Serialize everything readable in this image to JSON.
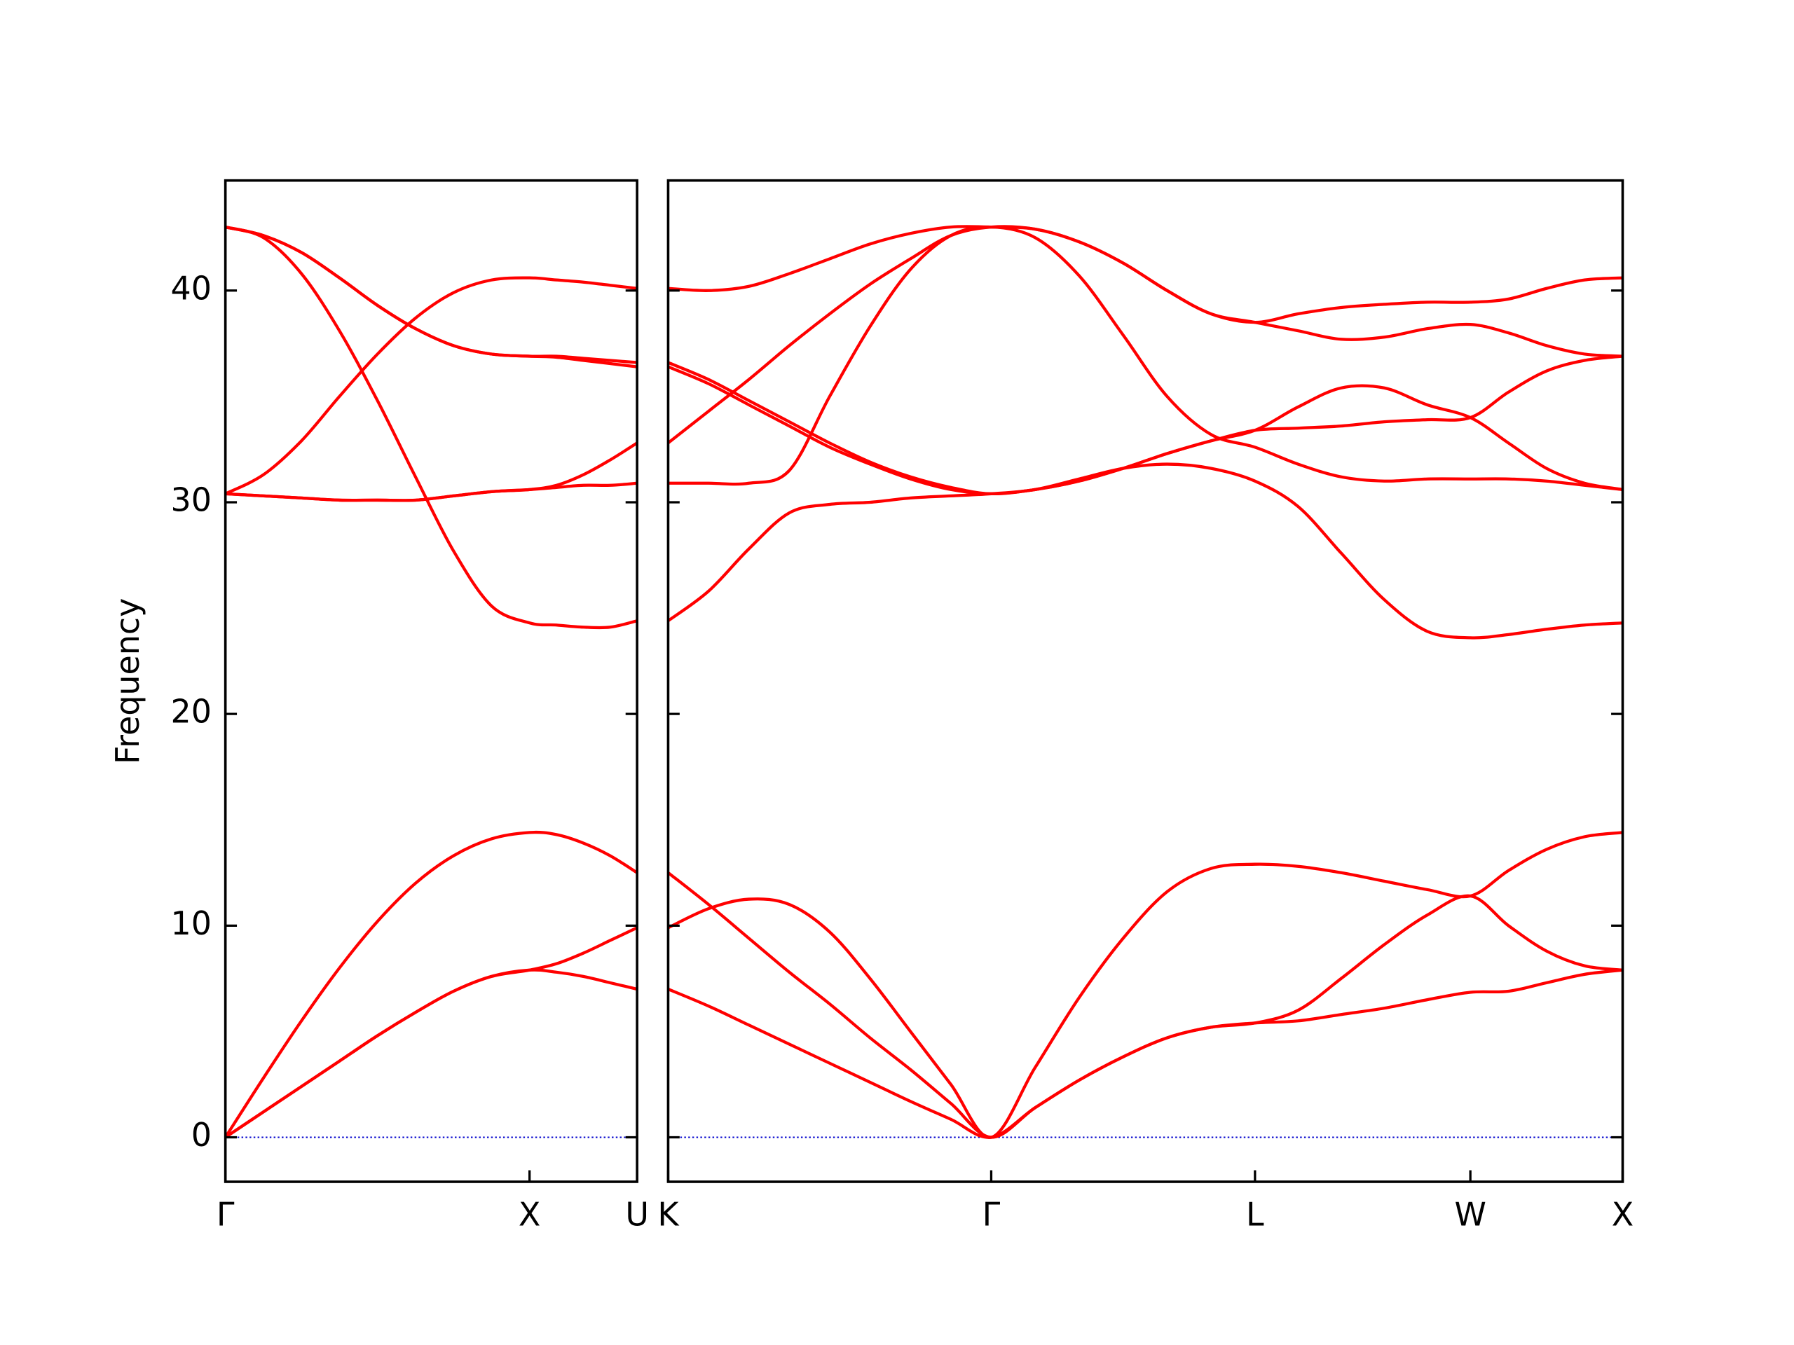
{
  "chart_data": [
    {
      "type": "line",
      "ylabel": "Frequency",
      "line_color": "#ff0000",
      "xlim": [
        0,
        1.3536
      ],
      "ylim": [
        -2.1,
        45.2
      ],
      "xticks": [
        {
          "value": 0,
          "label": "Γ"
        },
        {
          "value": 1,
          "label": "X"
        },
        {
          "value": 1.3536,
          "label": "U"
        }
      ],
      "yticks": [
        0,
        10,
        20,
        30,
        40
      ],
      "ytick_labels": true,
      "hlines": [
        {
          "value": 0,
          "color": "#0000cc",
          "style": "dotted"
        }
      ],
      "x": [
        0,
        0.125,
        0.25,
        0.375,
        0.5,
        0.625,
        0.75,
        0.875,
        1,
        1.0884,
        1.1768,
        1.2652,
        1.3536
      ],
      "series": [
        {
          "values": [
            0,
            1.2,
            2.4,
            3.6,
            4.8,
            5.9,
            6.9,
            7.6,
            7.9,
            7.8,
            7.6,
            7.3,
            7.0
          ]
        },
        {
          "values": [
            0,
            1.2,
            2.4,
            3.6,
            4.8,
            5.9,
            6.9,
            7.6,
            7.9,
            8.2,
            8.7,
            9.3,
            9.9
          ]
        },
        {
          "values": [
            0,
            2.8,
            5.5,
            8.0,
            10.2,
            12.0,
            13.3,
            14.1,
            14.4,
            14.3,
            13.9,
            13.3,
            12.5
          ]
        },
        {
          "values": [
            43.0,
            42.5,
            40.8,
            38.1,
            34.8,
            31.2,
            27.7,
            25.1,
            24.3,
            24.2,
            24.1,
            24.1,
            24.4
          ]
        },
        {
          "values": [
            30.4,
            30.3,
            30.2,
            30.1,
            30.1,
            30.1,
            30.3,
            30.5,
            30.6,
            30.7,
            30.8,
            30.8,
            30.9
          ]
        },
        {
          "values": [
            30.4,
            30.3,
            30.2,
            30.1,
            30.1,
            30.1,
            30.3,
            30.5,
            30.6,
            30.8,
            31.3,
            32.0,
            32.8
          ]
        },
        {
          "values": [
            43.0,
            42.6,
            41.8,
            40.6,
            39.3,
            38.2,
            37.4,
            37.0,
            36.9,
            36.9,
            36.8,
            36.7,
            36.6
          ]
        },
        {
          "values": [
            43.0,
            42.6,
            41.8,
            40.6,
            39.3,
            38.2,
            37.4,
            37.0,
            36.9,
            36.85,
            36.7,
            36.55,
            36.4
          ]
        },
        {
          "values": [
            30.4,
            31.3,
            32.9,
            35.0,
            37.0,
            38.7,
            39.9,
            40.5,
            40.6,
            40.5,
            40.4,
            40.25,
            40.1
          ]
        }
      ]
    },
    {
      "type": "line",
      "line_color": "#ff0000",
      "xlim": [
        1.3536,
        4.4874
      ],
      "ylim": [
        -2.1,
        45.2
      ],
      "xticks": [
        {
          "value": 1.3536,
          "label": "K"
        },
        {
          "value": 2.4143,
          "label": "Γ"
        },
        {
          "value": 3.2803,
          "label": "L"
        },
        {
          "value": 3.9874,
          "label": "W"
        },
        {
          "value": 4.4874,
          "label": "X"
        }
      ],
      "yticks": [
        0,
        10,
        20,
        30,
        40
      ],
      "ytick_labels": false,
      "hlines": [
        {
          "value": 0,
          "color": "#0000cc",
          "style": "dotted"
        }
      ],
      "x": [
        1.3536,
        1.4862,
        1.6188,
        1.7514,
        1.8839,
        2.0165,
        2.1491,
        2.2817,
        2.4143,
        2.5586,
        2.703,
        2.8473,
        2.9917,
        3.136,
        3.2803,
        3.4217,
        3.5631,
        3.7046,
        3.846,
        3.9874,
        4.1124,
        4.2374,
        4.3624,
        4.4874
      ],
      "series": [
        {
          "values": [
            7.0,
            6.2,
            5.3,
            4.4,
            3.5,
            2.6,
            1.7,
            0.85,
            0,
            1.4,
            2.7,
            3.8,
            4.7,
            5.2,
            5.4,
            5.5,
            5.8,
            6.1,
            6.5,
            6.85,
            6.9,
            7.3,
            7.7,
            7.9
          ]
        },
        {
          "values": [
            12.5,
            11.0,
            9.4,
            7.8,
            6.3,
            4.7,
            3.2,
            1.6,
            0,
            1.4,
            2.7,
            3.8,
            4.7,
            5.2,
            5.4,
            6.0,
            7.5,
            9.1,
            10.5,
            11.4,
            10.0,
            8.8,
            8.1,
            7.9
          ]
        },
        {
          "values": [
            9.9,
            10.8,
            11.25,
            11.0,
            9.7,
            7.5,
            5.0,
            2.5,
            0,
            3.3,
            6.6,
            9.4,
            11.6,
            12.7,
            12.9,
            12.8,
            12.5,
            12.1,
            11.7,
            11.4,
            12.6,
            13.6,
            14.2,
            14.4
          ]
        },
        {
          "values": [
            24.4,
            25.8,
            27.8,
            29.5,
            29.9,
            30.0,
            30.2,
            30.3,
            30.4,
            30.6,
            31.1,
            31.6,
            31.8,
            31.6,
            31.0,
            29.8,
            27.6,
            25.4,
            23.9,
            23.6,
            23.75,
            24.0,
            24.2,
            24.3
          ]
        },
        {
          "values": [
            30.9,
            30.9,
            30.9,
            31.5,
            35.0,
            38.3,
            41.0,
            42.6,
            43.0,
            42.5,
            40.7,
            37.9,
            35.0,
            33.2,
            32.6,
            31.8,
            31.2,
            31.0,
            31.1,
            31.1,
            31.1,
            31.0,
            30.8,
            30.6
          ]
        },
        {
          "values": [
            32.8,
            34.3,
            35.8,
            37.4,
            38.9,
            40.3,
            41.5,
            42.6,
            43.0,
            42.9,
            42.3,
            41.3,
            40.0,
            38.9,
            38.5,
            38.1,
            37.7,
            37.8,
            38.2,
            38.4,
            38.0,
            37.4,
            37.0,
            36.9
          ]
        },
        {
          "values": [
            36.4,
            35.6,
            34.6,
            33.6,
            32.6,
            31.8,
            31.1,
            30.6,
            30.4,
            30.6,
            31.0,
            31.6,
            32.3,
            32.9,
            33.4,
            34.5,
            35.4,
            35.4,
            34.6,
            34.0,
            32.8,
            31.6,
            30.9,
            30.6
          ]
        },
        {
          "values": [
            36.6,
            35.8,
            34.8,
            33.8,
            32.8,
            31.9,
            31.2,
            30.7,
            30.4,
            30.6,
            31.0,
            31.6,
            32.3,
            32.9,
            33.4,
            33.5,
            33.6,
            33.8,
            33.9,
            34.0,
            35.2,
            36.2,
            36.7,
            36.9
          ]
        },
        {
          "values": [
            40.1,
            40.0,
            40.2,
            40.8,
            41.5,
            42.2,
            42.7,
            43.0,
            43.0,
            42.9,
            42.3,
            41.3,
            40.0,
            38.9,
            38.5,
            38.9,
            39.2,
            39.35,
            39.45,
            39.45,
            39.6,
            40.1,
            40.5,
            40.6
          ]
        }
      ]
    }
  ]
}
